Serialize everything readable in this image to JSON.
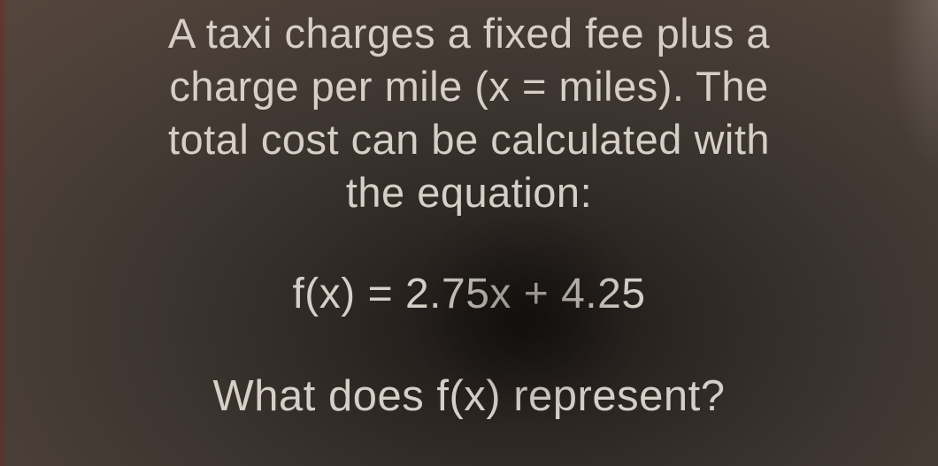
{
  "colors": {
    "text": "#d6cfc7",
    "bg_center": "#1a1614",
    "bg_outer": "#56463c"
  },
  "typography": {
    "body_fontsize_pt": 35,
    "equation_fontsize_pt": 36,
    "question_fontsize_pt": 37,
    "font_weight": 300,
    "font_family": "sans-serif"
  },
  "problem": {
    "line1": "A taxi charges a fixed fee plus a",
    "line2": "charge per mile (x = miles). The",
    "line3": "total cost can be calculated with",
    "line4": "the equation:"
  },
  "equation": "f(x) = 2.75x + 4.25",
  "question": "What does f(x) represent?"
}
